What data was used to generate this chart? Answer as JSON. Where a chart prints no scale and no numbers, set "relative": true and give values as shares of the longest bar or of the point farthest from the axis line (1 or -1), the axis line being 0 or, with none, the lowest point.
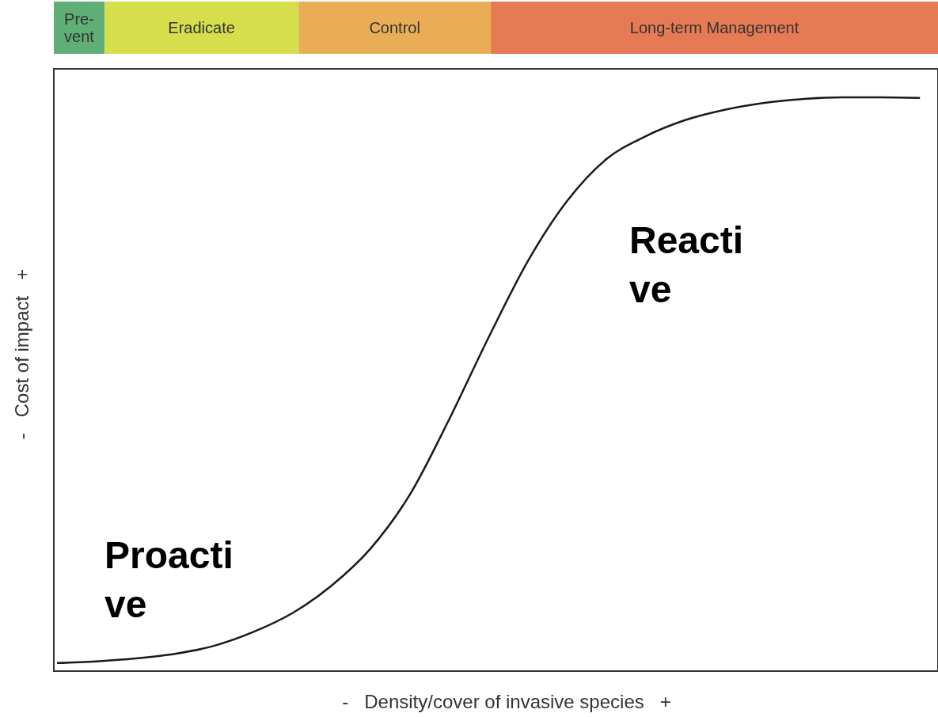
{
  "chart_data": {
    "type": "line",
    "relative": true,
    "xlabel": "-   Density/cover of invasive species   +",
    "ylabel": "-   Cost of impact   +",
    "categories": [
      null,
      null,
      null,
      null,
      null,
      null,
      null,
      null,
      null,
      null,
      null,
      null,
      null,
      null,
      null,
      null,
      null,
      null,
      null,
      null,
      null,
      null,
      null
    ],
    "series": [
      {
        "color": "#1a1a1a",
        "values": [
          0.014,
          0.017,
          0.022,
          0.03,
          0.044,
          0.068,
          0.101,
          0.149,
          0.214,
          0.308,
          0.439,
          0.581,
          0.714,
          0.819,
          0.892,
          0.932,
          0.96,
          0.978,
          0.99,
          0.997,
          1,
          1,
          0.999
        ]
      }
    ],
    "annotations": [
      "Proactive",
      "Reactive",
      "Pre-\nvent",
      "Eradicate",
      "Control",
      "Long-term Management"
    ],
    "grid": false,
    "marker": "none",
    "line_style": "solid"
  }
}
